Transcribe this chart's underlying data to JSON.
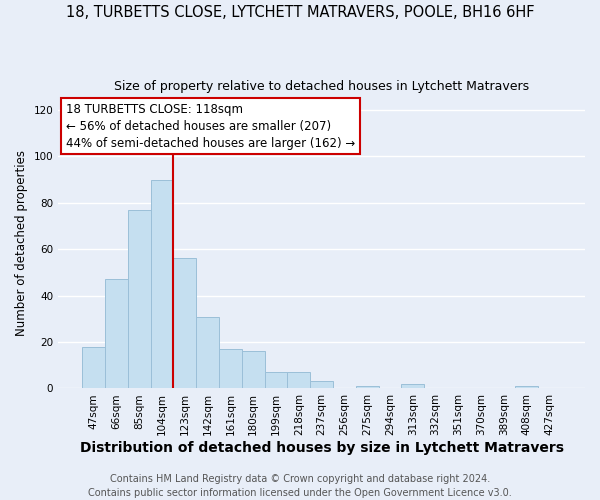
{
  "title": "18, TURBETTS CLOSE, LYTCHETT MATRAVERS, POOLE, BH16 6HF",
  "subtitle": "Size of property relative to detached houses in Lytchett Matravers",
  "xlabel": "Distribution of detached houses by size in Lytchett Matravers",
  "ylabel": "Number of detached properties",
  "bar_labels": [
    "47sqm",
    "66sqm",
    "85sqm",
    "104sqm",
    "123sqm",
    "142sqm",
    "161sqm",
    "180sqm",
    "199sqm",
    "218sqm",
    "237sqm",
    "256sqm",
    "275sqm",
    "294sqm",
    "313sqm",
    "332sqm",
    "351sqm",
    "370sqm",
    "389sqm",
    "408sqm",
    "427sqm"
  ],
  "bar_values": [
    18,
    47,
    77,
    90,
    56,
    31,
    17,
    16,
    7,
    7,
    3,
    0,
    1,
    0,
    2,
    0,
    0,
    0,
    0,
    1,
    0
  ],
  "bar_color": "#c5dff0",
  "bar_edge_color": "#9bbfd8",
  "vline_color": "#cc0000",
  "annotation_line1": "18 TURBETTS CLOSE: 118sqm",
  "annotation_line2": "← 56% of detached houses are smaller (207)",
  "annotation_line3": "44% of semi-detached houses are larger (162) →",
  "annotation_fontsize": 8.5,
  "ylim": [
    0,
    125
  ],
  "yticks": [
    0,
    20,
    40,
    60,
    80,
    100,
    120
  ],
  "title_fontsize": 10.5,
  "subtitle_fontsize": 9,
  "xlabel_fontsize": 10,
  "ylabel_fontsize": 8.5,
  "tick_fontsize": 7.5,
  "footnote": "Contains HM Land Registry data © Crown copyright and database right 2024.\nContains public sector information licensed under the Open Government Licence v3.0.",
  "footnote_fontsize": 7,
  "background_color": "#e8eef8",
  "plot_bg_color": "#e8eef8",
  "grid_color": "white",
  "box_edge_color": "#cc0000",
  "vline_position": 3.5
}
